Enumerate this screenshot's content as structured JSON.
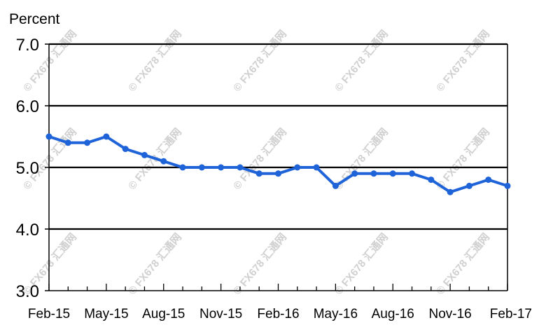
{
  "chart_data": {
    "type": "line",
    "ylabel": "Percent",
    "ylim": [
      3.0,
      7.0
    ],
    "yticks": [
      "3.0",
      "4.0",
      "5.0",
      "6.0",
      "7.0"
    ],
    "x": [
      "Feb-15",
      "Mar-15",
      "Apr-15",
      "May-15",
      "Jun-15",
      "Jul-15",
      "Aug-15",
      "Sep-15",
      "Oct-15",
      "Nov-15",
      "Dec-15",
      "Jan-16",
      "Feb-16",
      "Mar-16",
      "Apr-16",
      "May-16",
      "Jun-16",
      "Jul-16",
      "Aug-16",
      "Sep-16",
      "Oct-16",
      "Nov-16",
      "Dec-16",
      "Jan-17",
      "Feb-17"
    ],
    "xtick_labels": [
      "Feb-15",
      "May-15",
      "Aug-15",
      "Nov-15",
      "Feb-16",
      "May-16",
      "Aug-16",
      "Nov-16",
      "Feb-17"
    ],
    "series": [
      {
        "values": [
          5.5,
          5.4,
          5.4,
          5.5,
          5.3,
          5.2,
          5.1,
          5.0,
          5.0,
          5.0,
          5.0,
          4.9,
          4.9,
          5.0,
          5.0,
          4.7,
          4.9,
          4.9,
          4.9,
          4.9,
          4.8,
          4.6,
          4.7,
          4.8,
          4.7
        ],
        "color": "#1f63d8"
      }
    ],
    "grid": "horizontal",
    "watermark": "© FX678 汇通网"
  }
}
